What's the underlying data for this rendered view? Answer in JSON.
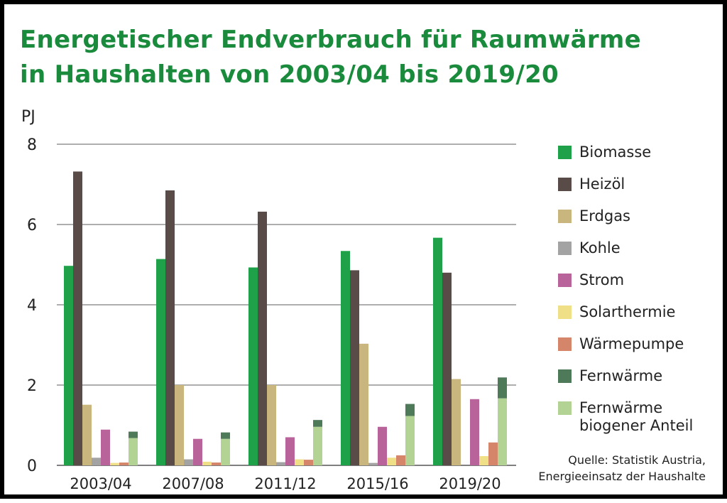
{
  "title_line1": "Energetischer Endverbrauch für Raumwärme",
  "title_line2": "in Haushalten von 2003/04 bis 2019/20",
  "source_line1": "Quelle: Statistik Austria,",
  "source_line2": "Energieeinsatz der Haushalte",
  "chart_data": {
    "type": "bar",
    "title": "Energetischer Endverbrauch für Raumwärme in Haushalten von 2003/04 bis 2019/20",
    "ylabel": "PJ",
    "xlabel": "",
    "ylim": [
      0,
      8
    ],
    "yticks": [
      0,
      2,
      4,
      6,
      8
    ],
    "grid": true,
    "legend_position": "right",
    "categories": [
      "2003/04",
      "2007/08",
      "2011/12",
      "2015/16",
      "2019/20"
    ],
    "series": [
      {
        "name": "Biomasse",
        "color": "#1fa14a",
        "values": [
          4.97,
          5.14,
          4.93,
          5.34,
          5.67
        ]
      },
      {
        "name": "Heizöl",
        "color": "#594c48",
        "values": [
          7.32,
          6.85,
          6.32,
          4.86,
          4.8
        ]
      },
      {
        "name": "Erdgas",
        "color": "#c9b57e",
        "values": [
          1.51,
          2.0,
          2.0,
          3.03,
          2.15
        ]
      },
      {
        "name": "Kohle",
        "color": "#a3a3a3",
        "values": [
          0.19,
          0.15,
          0.08,
          0.06,
          0.0
        ]
      },
      {
        "name": "Strom",
        "color": "#b8649a",
        "values": [
          0.89,
          0.66,
          0.7,
          0.96,
          1.65
        ]
      },
      {
        "name": "Solarthermie",
        "color": "#efdf86",
        "values": [
          0.06,
          0.09,
          0.15,
          0.19,
          0.23
        ]
      },
      {
        "name": "Wärmepumpe",
        "color": "#d4856a",
        "values": [
          0.07,
          0.07,
          0.14,
          0.25,
          0.57
        ]
      },
      {
        "name": "Fernwärme",
        "color": "#4f7a5a",
        "values": [
          0.16,
          0.16,
          0.17,
          0.3,
          0.52
        ]
      },
      {
        "name": "Fernwärme biogener Anteil",
        "color": "#b2d394",
        "values": [
          0.68,
          0.66,
          0.96,
          1.23,
          1.67
        ]
      }
    ],
    "stacked": {
      "series": [
        "Fernwärme biogener Anteil",
        "Fernwärme"
      ]
    },
    "legend_lines": {
      "Fernwärme biogener Anteil": [
        "Fernwärme",
        "biogener Anteil"
      ]
    }
  }
}
